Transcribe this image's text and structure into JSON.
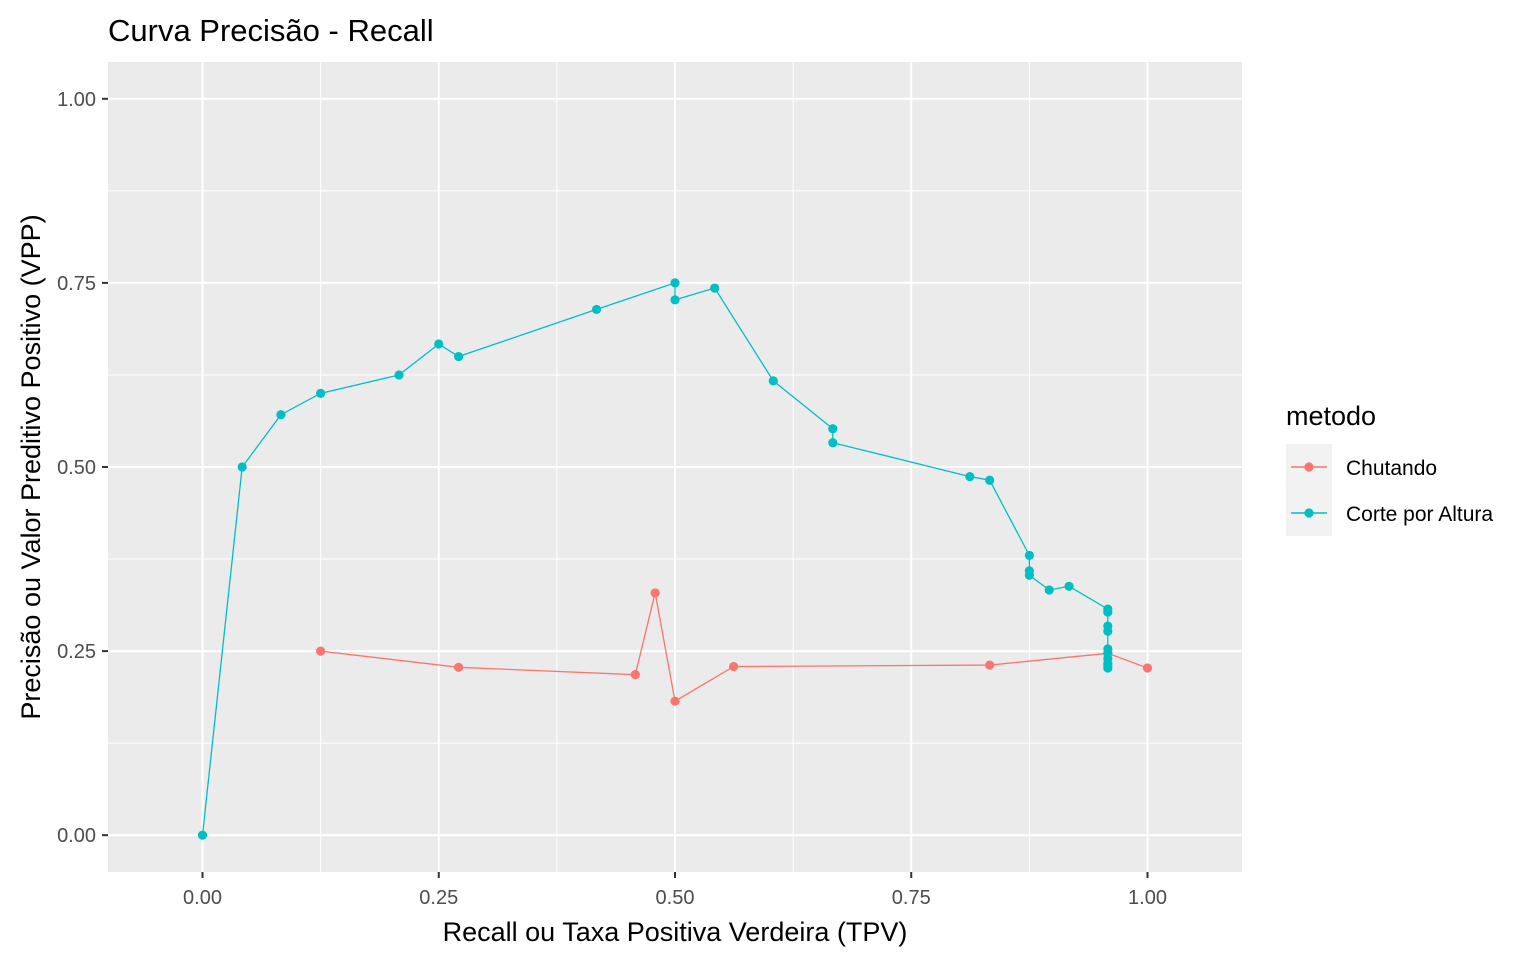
{
  "chart_data": {
    "type": "line",
    "title": "Curva Precisão - Recall",
    "xlabel": "Recall ou Taxa Positiva Verdeira (TPV)",
    "ylabel": "Precisão ou Valor Preditivo Positivo (VPP)",
    "xlim": [
      -0.1,
      1.1
    ],
    "ylim": [
      -0.05,
      1.05
    ],
    "x_ticks": [
      0,
      0.25,
      0.5,
      0.75,
      1
    ],
    "x_tick_labels": [
      "0.00",
      "0.25",
      "0.50",
      "0.75",
      "1.00"
    ],
    "y_ticks": [
      0,
      0.25,
      0.5,
      0.75,
      1
    ],
    "y_tick_labels": [
      "0.00",
      "0.25",
      "0.50",
      "0.75",
      "1.00"
    ],
    "grid": true,
    "legend": {
      "title": "metodo",
      "position": "right"
    },
    "series": [
      {
        "name": "Chutando",
        "color": "#F8766D",
        "points": [
          [
            0.125,
            0.25
          ],
          [
            0.271,
            0.228
          ],
          [
            0.458,
            0.218
          ],
          [
            0.479,
            0.329
          ],
          [
            0.5,
            0.182
          ],
          [
            0.562,
            0.229
          ],
          [
            0.833,
            0.231
          ],
          [
            0.958,
            0.247
          ],
          [
            1.0,
            0.227
          ]
        ]
      },
      {
        "name": "Corte por Altura",
        "color": "#00BFC4",
        "points": [
          [
            0.0,
            0.0
          ],
          [
            0.042,
            0.5
          ],
          [
            0.083,
            0.571
          ],
          [
            0.125,
            0.6
          ],
          [
            0.208,
            0.625
          ],
          [
            0.25,
            0.667
          ],
          [
            0.271,
            0.65
          ],
          [
            0.417,
            0.714
          ],
          [
            0.5,
            0.75
          ],
          [
            0.5,
            0.727
          ],
          [
            0.542,
            0.743
          ],
          [
            0.604,
            0.617
          ],
          [
            0.667,
            0.552
          ],
          [
            0.667,
            0.533
          ],
          [
            0.812,
            0.487
          ],
          [
            0.833,
            0.482
          ],
          [
            0.875,
            0.38
          ],
          [
            0.875,
            0.359
          ],
          [
            0.875,
            0.353
          ],
          [
            0.896,
            0.333
          ],
          [
            0.917,
            0.338
          ],
          [
            0.958,
            0.307
          ],
          [
            0.958,
            0.303
          ],
          [
            0.958,
            0.284
          ],
          [
            0.958,
            0.277
          ],
          [
            0.958,
            0.253
          ],
          [
            0.958,
            0.247
          ],
          [
            0.958,
            0.24
          ],
          [
            0.958,
            0.233
          ],
          [
            0.958,
            0.23
          ],
          [
            0.958,
            0.227
          ]
        ]
      }
    ]
  }
}
